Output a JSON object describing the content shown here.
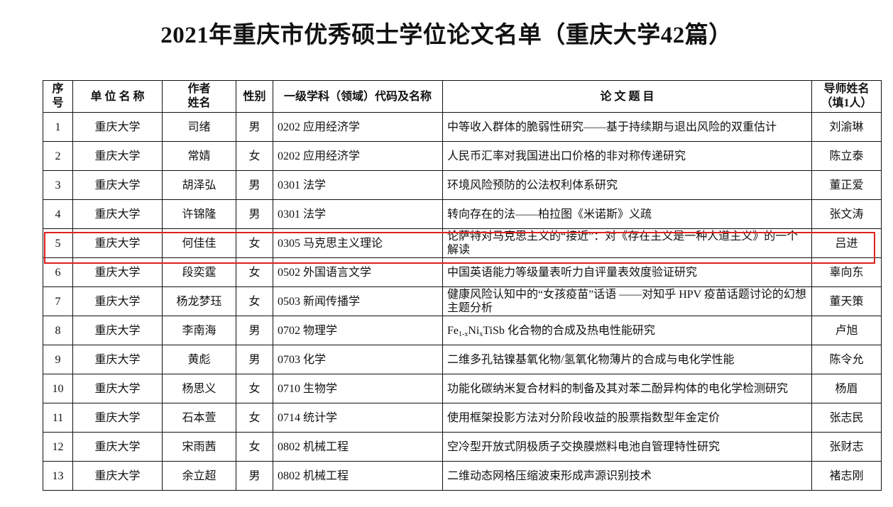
{
  "document": {
    "title": "2021年重庆市优秀硕士学位论文名单（重庆大学42篇）"
  },
  "table": {
    "headers": [
      "序号",
      "单 位 名 称",
      "作者姓名",
      "性别",
      "一级学科（领域）代码及名称",
      "论 文 题 目",
      "导师姓名（填1人）"
    ],
    "rows": [
      {
        "no": "1",
        "unit": "重庆大学",
        "author": "司绪",
        "gender": "男",
        "discipline": "0202  应用经济学",
        "title": "中等收入群体的脆弱性研究——基于持续期与退出风险的双重估计",
        "advisor": "刘渝琳"
      },
      {
        "no": "2",
        "unit": "重庆大学",
        "author": "常婧",
        "gender": "女",
        "discipline": "0202  应用经济学",
        "title": "人民币汇率对我国进出口价格的非对称传递研究",
        "advisor": "陈立泰"
      },
      {
        "no": "3",
        "unit": "重庆大学",
        "author": "胡泽弘",
        "gender": "男",
        "discipline": "0301  法学",
        "title": "环境风险预防的公法权利体系研究",
        "advisor": "董正爱"
      },
      {
        "no": "4",
        "unit": "重庆大学",
        "author": "许锦隆",
        "gender": "男",
        "discipline": "0301  法学",
        "title": "转向存在的法——柏拉图《米诺斯》义疏",
        "advisor": "张文涛"
      },
      {
        "no": "5",
        "unit": "重庆大学",
        "author": "何佳佳",
        "gender": "女",
        "discipline": "0305  马克思主义理论",
        "title": "论萨特对马克思主义的“接近”：对《存在主义是一种人道主义》的一个解读",
        "advisor": "吕进",
        "highlighted": true
      },
      {
        "no": "6",
        "unit": "重庆大学",
        "author": "段奕霆",
        "gender": "女",
        "discipline": "0502  外国语言文学",
        "title": "中国英语能力等级量表听力自评量表效度验证研究",
        "advisor": "辜向东"
      },
      {
        "no": "7",
        "unit": "重庆大学",
        "author": "杨龙梦珏",
        "gender": "女",
        "discipline": "0503  新闻传播学",
        "title": "健康风险认知中的“女孩疫苗”话语 ——对知乎 HPV 疫苗话题讨论的幻想主题分析",
        "advisor": "董天策"
      },
      {
        "no": "8",
        "unit": "重庆大学",
        "author": "李南海",
        "gender": "男",
        "discipline": "0702  物理学",
        "title_segments": [
          {
            "t": "Fe"
          },
          {
            "t": "1-x",
            "sub": true
          },
          {
            "t": "Ni"
          },
          {
            "t": "x",
            "sub": true
          },
          {
            "t": "TiSb 化合物的合成及热电性能研究"
          }
        ],
        "advisor": "卢旭"
      },
      {
        "no": "9",
        "unit": "重庆大学",
        "author": "黄彪",
        "gender": "男",
        "discipline": "0703  化学",
        "title": "二维多孔钴镍基氧化物/氢氧化物薄片的合成与电化学性能",
        "advisor": "陈令允"
      },
      {
        "no": "10",
        "unit": "重庆大学",
        "author": "杨思义",
        "gender": "女",
        "discipline": "0710  生物学",
        "title": "功能化碳纳米复合材料的制备及其对苯二酚异构体的电化学检测研究",
        "advisor": "杨眉"
      },
      {
        "no": "11",
        "unit": "重庆大学",
        "author": "石本萱",
        "gender": "女",
        "discipline": "0714  统计学",
        "title": "使用框架投影方法对分阶段收益的股票指数型年金定价",
        "advisor": "张志民"
      },
      {
        "no": "12",
        "unit": "重庆大学",
        "author": "宋雨茜",
        "gender": "女",
        "discipline": "0802  机械工程",
        "title": "空冷型开放式阴极质子交换膜燃料电池自管理特性研究",
        "advisor": "张财志"
      },
      {
        "no": "13",
        "unit": "重庆大学",
        "author": "余立超",
        "gender": "男",
        "discipline": "0802  机械工程",
        "title": "二维动态网格压缩波束形成声源识别技术",
        "advisor": "褚志刚"
      }
    ]
  },
  "colors": {
    "highlight_border": "#e0201e",
    "text": "#111111"
  }
}
